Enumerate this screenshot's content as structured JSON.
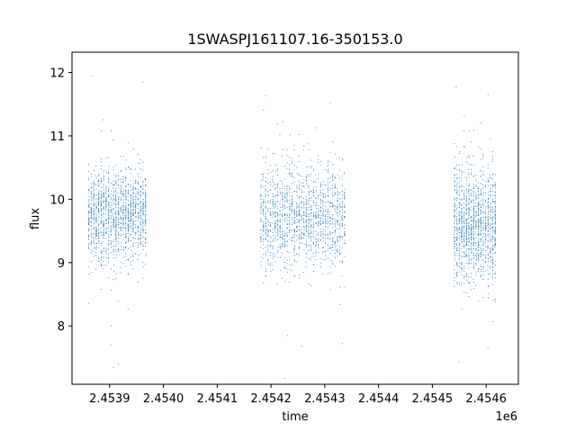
{
  "chart_data": {
    "type": "scatter",
    "title": "1SWASPJ161107.16-350153.0",
    "xlabel": "time",
    "ylabel": "flux",
    "x_offset_label": "1e6",
    "xlim": [
      2.45383,
      2.45466
    ],
    "ylim": [
      7.08,
      12.32
    ],
    "x_ticks": [
      2.4539,
      2.454,
      2.4541,
      2.4542,
      2.4543,
      2.4544,
      2.4545,
      2.4546
    ],
    "x_tick_labels": [
      "2.4539",
      "2.4540",
      "2.4541",
      "2.4542",
      "2.4543",
      "2.4544",
      "2.4545",
      "2.4546"
    ],
    "y_ticks": [
      8,
      9,
      10,
      11,
      12
    ],
    "y_tick_labels": [
      "8",
      "9",
      "10",
      "11",
      "12"
    ],
    "grid": false,
    "marker_color": "#1f77b4",
    "series": [
      {
        "values_description_free": true,
        "clusters": [
          {
            "x_start": 2.45386,
            "x_end": 2.45397,
            "y_center": 9.75,
            "y_spread": 0.35,
            "count": 1400
          },
          {
            "x_start": 2.45418,
            "x_end": 2.45434,
            "y_center": 9.7,
            "y_spread": 0.4,
            "count": 1500
          },
          {
            "x_start": 2.45454,
            "x_end": 2.45462,
            "y_center": 9.6,
            "y_spread": 0.45,
            "count": 1300
          }
        ]
      }
    ]
  }
}
